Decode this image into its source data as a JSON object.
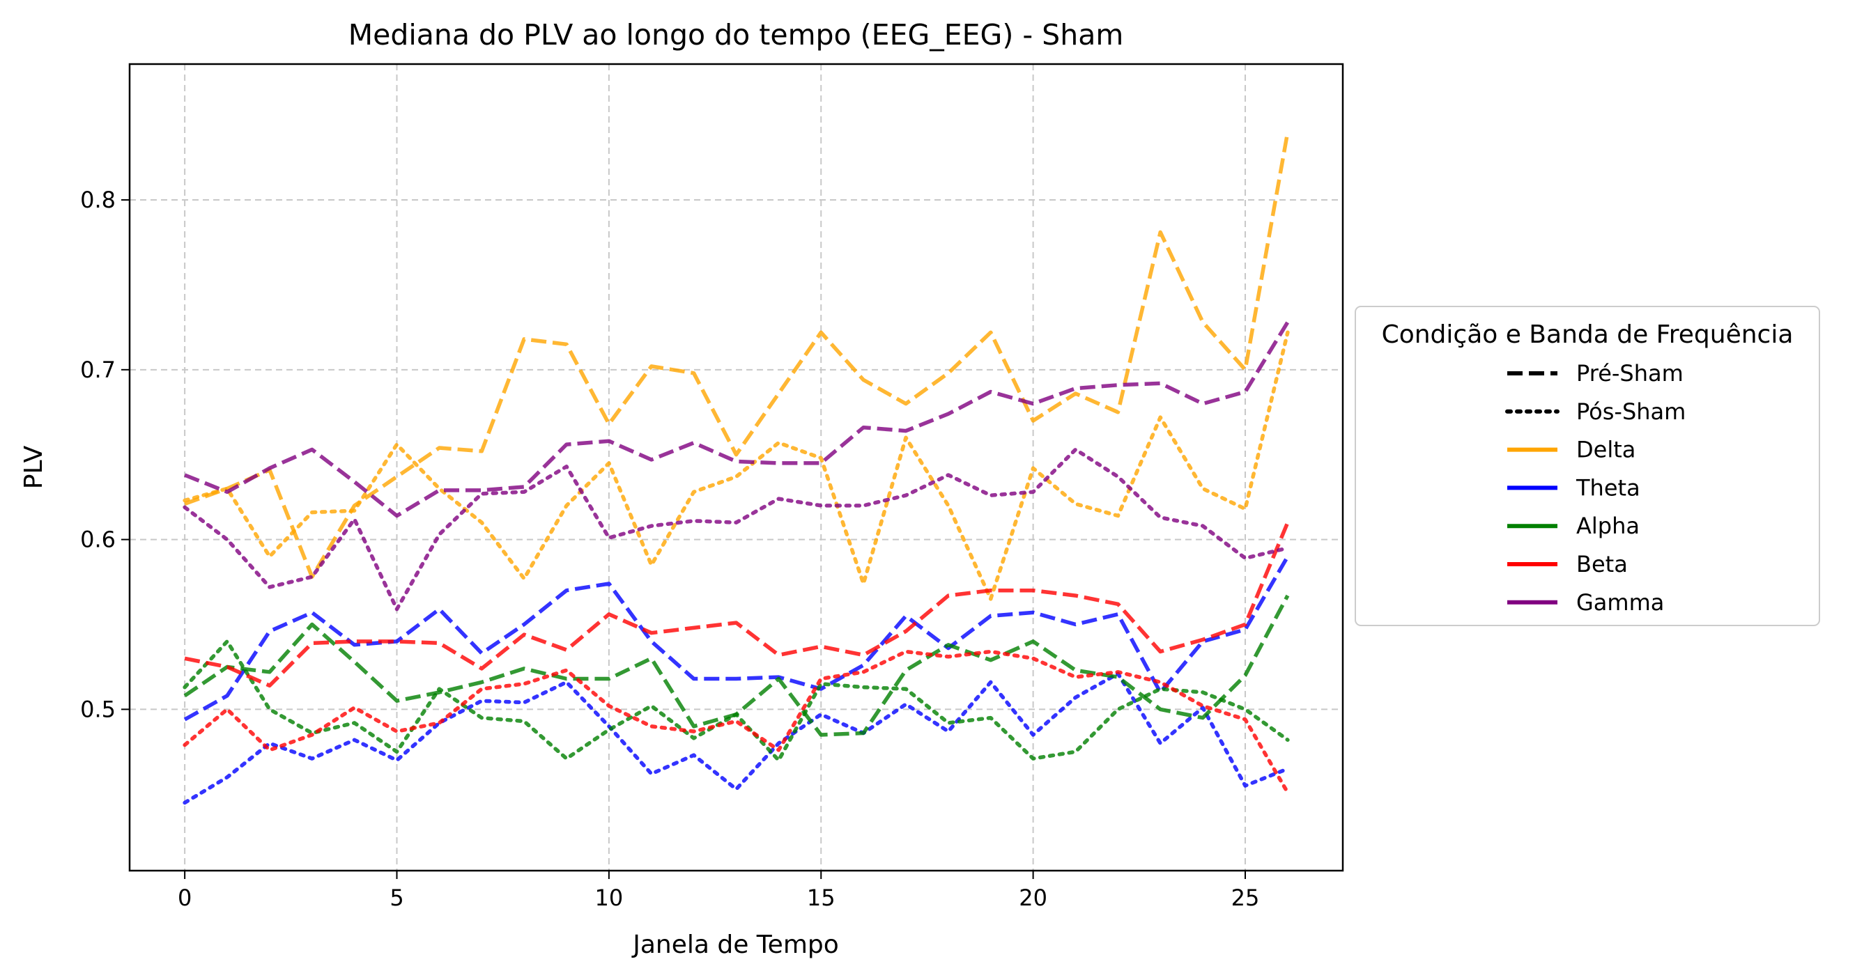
{
  "chart_data": {
    "type": "line",
    "title": "Mediana do PLV ao longo do tempo (EEG_EEG) - Sham",
    "xlabel": "Janela de Tempo",
    "ylabel": "PLV",
    "xlim": [
      -1.3,
      27.3
    ],
    "ylim": [
      0.405,
      0.88
    ],
    "xticks": [
      0,
      5,
      10,
      15,
      20,
      25
    ],
    "yticks": [
      0.5,
      0.6,
      0.7,
      0.8
    ],
    "grid": true,
    "legend": {
      "title": "Condição e Banda de Frequência",
      "placement": "right-outside",
      "styles": [
        {
          "label": "Pré-Sham",
          "dash": "dashed"
        },
        {
          "label": "Pós-Sham",
          "dash": "dotted"
        }
      ],
      "bands": [
        {
          "label": "Delta",
          "color": "#ffa500"
        },
        {
          "label": "Theta",
          "color": "#0000ff"
        },
        {
          "label": "Alpha",
          "color": "#008000"
        },
        {
          "label": "Beta",
          "color": "#ff0000"
        },
        {
          "label": "Gamma",
          "color": "#800080"
        }
      ]
    },
    "x": [
      0,
      1,
      2,
      3,
      4,
      5,
      6,
      7,
      8,
      9,
      10,
      11,
      12,
      13,
      14,
      15,
      16,
      17,
      18,
      19,
      20,
      21,
      22,
      23,
      24,
      25,
      26
    ],
    "series": [
      {
        "band": "Delta",
        "condition": "Pré-Sham",
        "color": "#ffa500",
        "values": [
          0.621,
          0.63,
          0.641,
          0.578,
          0.62,
          0.637,
          0.654,
          0.652,
          0.718,
          0.715,
          0.668,
          0.702,
          0.698,
          0.65,
          0.686,
          0.722,
          0.694,
          0.68,
          0.698,
          0.722,
          0.67,
          0.686,
          0.675,
          0.781,
          0.728,
          0.7,
          0.84
        ]
      },
      {
        "band": "Delta",
        "condition": "Pós-Sham",
        "color": "#ffa500",
        "values": [
          0.623,
          0.63,
          0.59,
          0.616,
          0.617,
          0.656,
          0.63,
          0.61,
          0.577,
          0.62,
          0.645,
          0.585,
          0.628,
          0.637,
          0.657,
          0.648,
          0.574,
          0.66,
          0.62,
          0.565,
          0.642,
          0.621,
          0.614,
          0.672,
          0.63,
          0.618,
          0.722
        ]
      },
      {
        "band": "Theta",
        "condition": "Pré-Sham",
        "color": "#0000ff",
        "values": [
          0.494,
          0.508,
          0.546,
          0.557,
          0.538,
          0.54,
          0.559,
          0.533,
          0.55,
          0.57,
          0.574,
          0.54,
          0.518,
          0.518,
          0.519,
          0.512,
          0.526,
          0.555,
          0.536,
          0.555,
          0.557,
          0.55,
          0.556,
          0.51,
          0.54,
          0.547,
          0.59
        ]
      },
      {
        "band": "Theta",
        "condition": "Pós-Sham",
        "color": "#0000ff",
        "values": [
          0.445,
          0.46,
          0.48,
          0.471,
          0.482,
          0.47,
          0.492,
          0.505,
          0.504,
          0.516,
          0.49,
          0.462,
          0.473,
          0.453,
          0.48,
          0.497,
          0.486,
          0.503,
          0.487,
          0.516,
          0.485,
          0.507,
          0.521,
          0.48,
          0.501,
          0.455,
          0.465
        ]
      },
      {
        "band": "Alpha",
        "condition": "Pré-Sham",
        "color": "#008000",
        "values": [
          0.508,
          0.525,
          0.522,
          0.55,
          0.528,
          0.505,
          0.51,
          0.516,
          0.524,
          0.518,
          0.518,
          0.53,
          0.49,
          0.497,
          0.518,
          0.485,
          0.486,
          0.523,
          0.538,
          0.529,
          0.54,
          0.523,
          0.519,
          0.5,
          0.495,
          0.52,
          0.567
        ]
      },
      {
        "band": "Alpha",
        "condition": "Pós-Sham",
        "color": "#008000",
        "values": [
          0.513,
          0.54,
          0.5,
          0.486,
          0.492,
          0.475,
          0.512,
          0.495,
          0.493,
          0.471,
          0.488,
          0.502,
          0.483,
          0.497,
          0.47,
          0.515,
          0.513,
          0.512,
          0.492,
          0.495,
          0.471,
          0.475,
          0.5,
          0.512,
          0.51,
          0.5,
          0.482
        ]
      },
      {
        "band": "Beta",
        "condition": "Pré-Sham",
        "color": "#ff0000",
        "values": [
          0.53,
          0.525,
          0.514,
          0.539,
          0.54,
          0.54,
          0.539,
          0.524,
          0.544,
          0.535,
          0.556,
          0.545,
          0.548,
          0.551,
          0.532,
          0.537,
          0.532,
          0.546,
          0.567,
          0.57,
          0.57,
          0.567,
          0.562,
          0.534,
          0.541,
          0.55,
          0.61
        ]
      },
      {
        "band": "Beta",
        "condition": "Pós-Sham",
        "color": "#ff0000",
        "values": [
          0.479,
          0.5,
          0.476,
          0.485,
          0.501,
          0.487,
          0.492,
          0.512,
          0.515,
          0.523,
          0.502,
          0.49,
          0.487,
          0.493,
          0.476,
          0.518,
          0.522,
          0.534,
          0.531,
          0.534,
          0.53,
          0.519,
          0.522,
          0.516,
          0.502,
          0.494,
          0.451
        ]
      },
      {
        "band": "Gamma",
        "condition": "Pré-Sham",
        "color": "#800080",
        "values": [
          0.638,
          0.628,
          0.642,
          0.653,
          0.634,
          0.614,
          0.629,
          0.629,
          0.631,
          0.656,
          0.658,
          0.647,
          0.657,
          0.646,
          0.645,
          0.645,
          0.666,
          0.664,
          0.674,
          0.687,
          0.68,
          0.689,
          0.691,
          0.692,
          0.68,
          0.687,
          0.728
        ]
      },
      {
        "band": "Gamma",
        "condition": "Pós-Sham",
        "color": "#800080",
        "values": [
          0.619,
          0.6,
          0.572,
          0.578,
          0.612,
          0.559,
          0.603,
          0.627,
          0.628,
          0.643,
          0.601,
          0.608,
          0.611,
          0.61,
          0.624,
          0.62,
          0.62,
          0.626,
          0.638,
          0.626,
          0.628,
          0.653,
          0.637,
          0.613,
          0.608,
          0.589,
          0.595
        ]
      }
    ]
  }
}
